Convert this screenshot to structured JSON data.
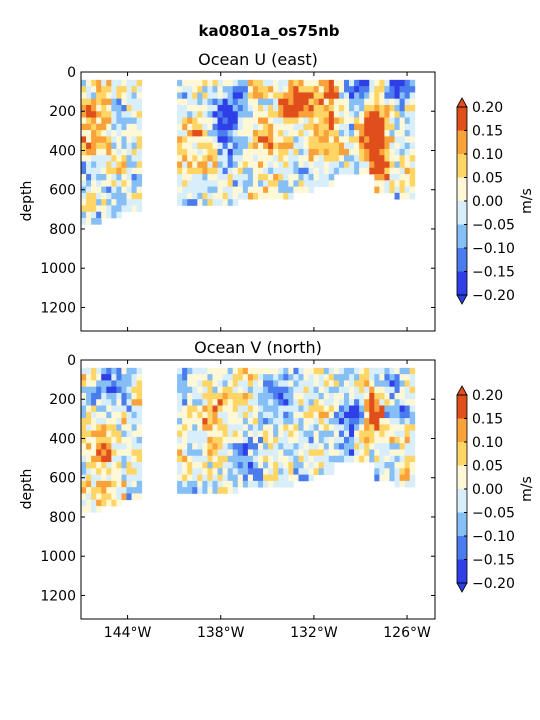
{
  "figure": {
    "title": "ka0801a_os75nb"
  },
  "chart_data": [
    {
      "type": "heatmap",
      "title": "Ocean U (east)",
      "xlabel": "",
      "ylabel": "depth",
      "xlim": [
        -147,
        -124.2
      ],
      "ylim": [
        1320,
        0
      ],
      "yticks": [
        0,
        200,
        400,
        600,
        800,
        1000,
        1200
      ],
      "xticks": [
        -144,
        -138,
        -132,
        -126
      ],
      "xtick_labels": [
        "144°W",
        "138°W",
        "132°W",
        "126°W"
      ],
      "show_xtick_labels": false,
      "colorbar": {
        "label": "m/s",
        "levels": [
          -0.2,
          -0.15,
          -0.1,
          -0.05,
          0.0,
          0.05,
          0.1,
          0.15,
          0.2
        ],
        "tick_labels": [
          "−0.20",
          "−0.15",
          "−0.10",
          "−0.05",
          "0.00",
          "0.05",
          "0.10",
          "0.15",
          "0.20"
        ],
        "colors": [
          "#2f3fe8",
          "#4a7cf0",
          "#86bff5",
          "#d8eefa",
          "#fff8d6",
          "#ffd566",
          "#f9a23a",
          "#e04e1c"
        ],
        "extend": "both"
      },
      "data_columns": [
        {
          "x0": -147.0,
          "x1": -145.8,
          "depth_max": 760
        },
        {
          "x0": -145.8,
          "x1": -144.5,
          "depth_max": 750
        },
        {
          "x0": -144.5,
          "x1": -143.3,
          "depth_max": 720
        },
        {
          "x0": -143.3,
          "x1": -143.0,
          "depth_max": 700
        },
        {
          "x0": -140.7,
          "x1": -139.4,
          "depth_max": 680
        },
        {
          "x0": -139.4,
          "x1": -138.2,
          "depth_max": 670
        },
        {
          "x0": -138.2,
          "x1": -136.9,
          "depth_max": 670
        },
        {
          "x0": -136.9,
          "x1": -135.7,
          "depth_max": 660
        },
        {
          "x0": -135.7,
          "x1": -134.4,
          "depth_max": 660
        },
        {
          "x0": -134.4,
          "x1": -133.2,
          "depth_max": 640
        },
        {
          "x0": -133.2,
          "x1": -131.9,
          "depth_max": 610
        },
        {
          "x0": -131.9,
          "x1": -130.7,
          "depth_max": 570
        },
        {
          "x0": -130.7,
          "x1": -129.4,
          "depth_max": 520
        },
        {
          "x0": -129.4,
          "x1": -128.2,
          "depth_max": 530
        },
        {
          "x0": -128.2,
          "x1": -126.9,
          "depth_max": 600
        },
        {
          "x0": -126.9,
          "x1": -125.6,
          "depth_max": 660
        },
        {
          "x0": -125.6,
          "x1": -125.2,
          "depth_max": 40
        }
      ],
      "features": [
        {
          "lon": -133.0,
          "depth": 120,
          "value": 0.2
        },
        {
          "lon": -128.2,
          "depth": 250,
          "value": 0.2
        },
        {
          "lon": -127.9,
          "depth": 470,
          "value": 0.18
        },
        {
          "lon": -146.6,
          "depth": 250,
          "value": 0.14
        },
        {
          "lon": -137.5,
          "depth": 230,
          "value": -0.15
        },
        {
          "lon": -128.8,
          "depth": 60,
          "value": -0.18
        },
        {
          "lon": -126.4,
          "depth": 60,
          "value": -0.17
        },
        {
          "lon": -135.0,
          "depth": 300,
          "value": 0.1
        },
        {
          "lon": -131.0,
          "depth": 200,
          "value": 0.11
        },
        {
          "lon": -139.5,
          "depth": 350,
          "value": 0.08
        }
      ]
    },
    {
      "type": "heatmap",
      "title": "Ocean V (north)",
      "xlabel": "",
      "ylabel": "depth",
      "xlim": [
        -147,
        -124.2
      ],
      "ylim": [
        1320,
        0
      ],
      "yticks": [
        0,
        200,
        400,
        600,
        800,
        1000,
        1200
      ],
      "xticks": [
        -144,
        -138,
        -132,
        -126
      ],
      "xtick_labels": [
        "144°W",
        "138°W",
        "132°W",
        "126°W"
      ],
      "show_xtick_labels": true,
      "colorbar": {
        "label": "m/s",
        "levels": [
          -0.2,
          -0.15,
          -0.1,
          -0.05,
          0.0,
          0.05,
          0.1,
          0.15,
          0.2
        ],
        "tick_labels": [
          "−0.20",
          "−0.15",
          "−0.10",
          "−0.05",
          "0.00",
          "0.05",
          "0.10",
          "0.15",
          "0.20"
        ],
        "colors": [
          "#2f3fe8",
          "#4a7cf0",
          "#86bff5",
          "#d8eefa",
          "#fff8d6",
          "#ffd566",
          "#f9a23a",
          "#e04e1c"
        ],
        "extend": "both"
      },
      "data_columns": [
        {
          "x0": -147.0,
          "x1": -145.8,
          "depth_max": 760
        },
        {
          "x0": -145.8,
          "x1": -144.5,
          "depth_max": 750
        },
        {
          "x0": -144.5,
          "x1": -143.3,
          "depth_max": 720
        },
        {
          "x0": -143.3,
          "x1": -143.0,
          "depth_max": 700
        },
        {
          "x0": -140.7,
          "x1": -139.4,
          "depth_max": 680
        },
        {
          "x0": -139.4,
          "x1": -138.2,
          "depth_max": 670
        },
        {
          "x0": -138.2,
          "x1": -136.9,
          "depth_max": 670
        },
        {
          "x0": -136.9,
          "x1": -135.7,
          "depth_max": 660
        },
        {
          "x0": -135.7,
          "x1": -134.4,
          "depth_max": 660
        },
        {
          "x0": -134.4,
          "x1": -133.2,
          "depth_max": 640
        },
        {
          "x0": -133.2,
          "x1": -131.9,
          "depth_max": 610
        },
        {
          "x0": -131.9,
          "x1": -130.7,
          "depth_max": 570
        },
        {
          "x0": -130.7,
          "x1": -129.4,
          "depth_max": 520
        },
        {
          "x0": -129.4,
          "x1": -128.2,
          "depth_max": 530
        },
        {
          "x0": -128.2,
          "x1": -126.9,
          "depth_max": 600
        },
        {
          "x0": -126.9,
          "x1": -125.6,
          "depth_max": 660
        },
        {
          "x0": -125.6,
          "x1": -125.2,
          "depth_max": 40
        }
      ],
      "features": [
        {
          "lon": -144.8,
          "depth": 60,
          "value": -0.18
        },
        {
          "lon": -145.5,
          "depth": 500,
          "value": 0.12
        },
        {
          "lon": -134.5,
          "depth": 170,
          "value": -0.17
        },
        {
          "lon": -129.6,
          "depth": 300,
          "value": -0.19
        },
        {
          "lon": -128.3,
          "depth": 260,
          "value": 0.19
        },
        {
          "lon": -127.0,
          "depth": 150,
          "value": -0.13
        },
        {
          "lon": -138.5,
          "depth": 300,
          "value": 0.11
        },
        {
          "lon": -136.5,
          "depth": 450,
          "value": -0.08
        },
        {
          "lon": -131.5,
          "depth": 250,
          "value": 0.06
        }
      ]
    }
  ]
}
